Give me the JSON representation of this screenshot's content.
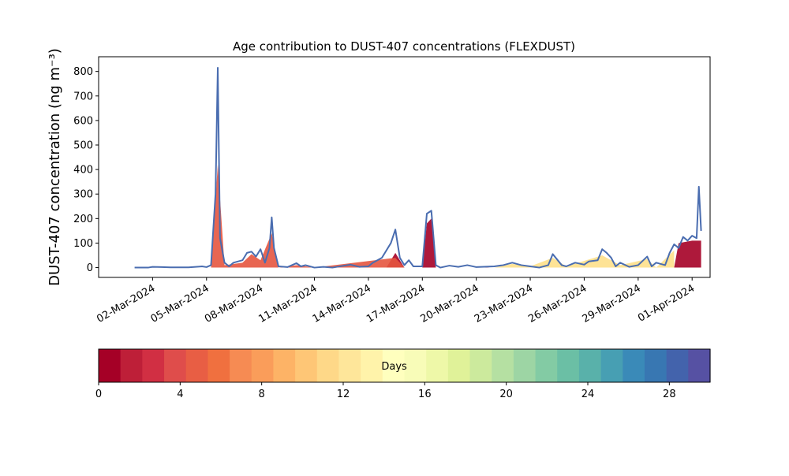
{
  "chart_data": {
    "type": "area",
    "title": "Age contribution to DUST-407 concentrations (FLEXDUST)",
    "ylabel": "DUST-407 concentration (ng m⁻³)",
    "xlabel": "",
    "x_range": [
      "2024-02-28",
      "2024-04-02"
    ],
    "ylim": [
      -40,
      860
    ],
    "yticks": [
      0,
      100,
      200,
      300,
      400,
      500,
      600,
      700,
      800
    ],
    "xticks": [
      {
        "date": "2024-03-02",
        "label": "02-Mar-2024"
      },
      {
        "date": "2024-03-05",
        "label": "05-Mar-2024"
      },
      {
        "date": "2024-03-08",
        "label": "08-Mar-2024"
      },
      {
        "date": "2024-03-11",
        "label": "11-Mar-2024"
      },
      {
        "date": "2024-03-14",
        "label": "14-Mar-2024"
      },
      {
        "date": "2024-03-17",
        "label": "17-Mar-2024"
      },
      {
        "date": "2024-03-20",
        "label": "20-Mar-2024"
      },
      {
        "date": "2024-03-23",
        "label": "23-Mar-2024"
      },
      {
        "date": "2024-03-26",
        "label": "26-Mar-2024"
      },
      {
        "date": "2024-03-29",
        "label": "29-Mar-2024"
      },
      {
        "date": "2024-04-01",
        "label": "01-Apr-2024"
      }
    ],
    "grid": false,
    "total_line_color": "#4a6db0",
    "series_total": [
      [
        "2024-03-01T00:00",
        0
      ],
      [
        "2024-03-01T18:00",
        0
      ],
      [
        "2024-03-02T00:00",
        3
      ],
      [
        "2024-03-02T12:00",
        2
      ],
      [
        "2024-03-03T00:00",
        1
      ],
      [
        "2024-03-04T00:00",
        1
      ],
      [
        "2024-03-04T18:00",
        5
      ],
      [
        "2024-03-05T00:00",
        2
      ],
      [
        "2024-03-05T06:00",
        10
      ],
      [
        "2024-03-05T12:00",
        300
      ],
      [
        "2024-03-05T15:00",
        815
      ],
      [
        "2024-03-05T18:00",
        120
      ],
      [
        "2024-03-06T00:00",
        20
      ],
      [
        "2024-03-06T06:00",
        5
      ],
      [
        "2024-03-06T12:00",
        20
      ],
      [
        "2024-03-07T00:00",
        30
      ],
      [
        "2024-03-07T06:00",
        60
      ],
      [
        "2024-03-07T12:00",
        65
      ],
      [
        "2024-03-07T18:00",
        45
      ],
      [
        "2024-03-08T00:00",
        75
      ],
      [
        "2024-03-08T06:00",
        20
      ],
      [
        "2024-03-08T12:00",
        80
      ],
      [
        "2024-03-08T15:00",
        205
      ],
      [
        "2024-03-08T18:00",
        80
      ],
      [
        "2024-03-09T00:00",
        5
      ],
      [
        "2024-03-09T12:00",
        2
      ],
      [
        "2024-03-10T00:00",
        18
      ],
      [
        "2024-03-10T06:00",
        5
      ],
      [
        "2024-03-10T12:00",
        10
      ],
      [
        "2024-03-11T00:00",
        0
      ],
      [
        "2024-03-11T12:00",
        3
      ],
      [
        "2024-03-12T00:00",
        0
      ],
      [
        "2024-03-13T00:00",
        12
      ],
      [
        "2024-03-13T12:00",
        3
      ],
      [
        "2024-03-14T00:00",
        5
      ],
      [
        "2024-03-14T06:00",
        20
      ],
      [
        "2024-03-14T18:00",
        40
      ],
      [
        "2024-03-15T06:00",
        100
      ],
      [
        "2024-03-15T12:00",
        155
      ],
      [
        "2024-03-15T18:00",
        40
      ],
      [
        "2024-03-16T00:00",
        10
      ],
      [
        "2024-03-16T06:00",
        30
      ],
      [
        "2024-03-16T12:00",
        5
      ],
      [
        "2024-03-17T00:00",
        5
      ],
      [
        "2024-03-17T06:00",
        220
      ],
      [
        "2024-03-17T12:00",
        232
      ],
      [
        "2024-03-17T18:00",
        10
      ],
      [
        "2024-03-18T00:00",
        0
      ],
      [
        "2024-03-18T12:00",
        8
      ],
      [
        "2024-03-19T00:00",
        3
      ],
      [
        "2024-03-19T12:00",
        10
      ],
      [
        "2024-03-20T00:00",
        2
      ],
      [
        "2024-03-21T00:00",
        5
      ],
      [
        "2024-03-21T12:00",
        10
      ],
      [
        "2024-03-22T00:00",
        20
      ],
      [
        "2024-03-22T12:00",
        10
      ],
      [
        "2024-03-23T00:00",
        5
      ],
      [
        "2024-03-23T12:00",
        0
      ],
      [
        "2024-03-24T00:00",
        10
      ],
      [
        "2024-03-24T06:00",
        55
      ],
      [
        "2024-03-24T18:00",
        10
      ],
      [
        "2024-03-25T00:00",
        5
      ],
      [
        "2024-03-25T12:00",
        20
      ],
      [
        "2024-03-26T00:00",
        12
      ],
      [
        "2024-03-26T06:00",
        25
      ],
      [
        "2024-03-26T18:00",
        30
      ],
      [
        "2024-03-27T00:00",
        75
      ],
      [
        "2024-03-27T06:00",
        60
      ],
      [
        "2024-03-27T12:00",
        40
      ],
      [
        "2024-03-27T18:00",
        5
      ],
      [
        "2024-03-28T00:00",
        20
      ],
      [
        "2024-03-28T12:00",
        3
      ],
      [
        "2024-03-29T00:00",
        10
      ],
      [
        "2024-03-29T12:00",
        45
      ],
      [
        "2024-03-29T18:00",
        5
      ],
      [
        "2024-03-30T00:00",
        20
      ],
      [
        "2024-03-30T12:00",
        10
      ],
      [
        "2024-03-30T18:00",
        60
      ],
      [
        "2024-03-31T00:00",
        95
      ],
      [
        "2024-03-31T06:00",
        80
      ],
      [
        "2024-03-31T12:00",
        125
      ],
      [
        "2024-03-31T18:00",
        110
      ],
      [
        "2024-04-01T00:00",
        130
      ],
      [
        "2024-04-01T06:00",
        120
      ],
      [
        "2024-04-01T09:00",
        330
      ],
      [
        "2024-04-01T12:00",
        150
      ]
    ],
    "age_layers": [
      {
        "age_days": [
          0,
          1
        ],
        "color": "#a50026",
        "points": [
          [
            "2024-03-15T00:00",
            0
          ],
          [
            "2024-03-15T12:00",
            60
          ],
          [
            "2024-03-16T00:00",
            0
          ],
          [
            "2024-03-17T00:00",
            0
          ],
          [
            "2024-03-17T06:00",
            180
          ],
          [
            "2024-03-17T12:00",
            200
          ],
          [
            "2024-03-17T18:00",
            0
          ],
          [
            "2024-03-20T00:00",
            0
          ],
          [
            "2024-03-20T06:00",
            5
          ],
          [
            "2024-03-20T18:00",
            0
          ],
          [
            "2024-03-30T18:00",
            0
          ],
          [
            "2024-03-31T00:00",
            0
          ],
          [
            "2024-03-31T06:00",
            100
          ],
          [
            "2024-04-01T00:00",
            110
          ],
          [
            "2024-04-01T12:00",
            110
          ]
        ]
      },
      {
        "age_days": [
          3,
          7
        ],
        "color": "#e6553f",
        "points": [
          [
            "2024-03-05T06:00",
            0
          ],
          [
            "2024-03-05T15:00",
            420
          ],
          [
            "2024-03-06T00:00",
            10
          ],
          [
            "2024-03-07T00:00",
            20
          ],
          [
            "2024-03-07T12:00",
            55
          ],
          [
            "2024-03-08T00:00",
            30
          ],
          [
            "2024-03-08T15:00",
            140
          ],
          [
            "2024-03-09T00:00",
            0
          ],
          [
            "2024-03-10T00:00",
            10
          ],
          [
            "2024-03-11T00:00",
            0
          ],
          [
            "2024-03-15T12:00",
            40
          ],
          [
            "2024-03-16T00:00",
            0
          ]
        ]
      },
      {
        "age_days": [
          10,
          15
        ],
        "color": "#fee08b",
        "points": [
          [
            "2024-03-21T00:00",
            0
          ],
          [
            "2024-03-22T00:00",
            15
          ],
          [
            "2024-03-23T00:00",
            5
          ],
          [
            "2024-03-24T06:00",
            40
          ],
          [
            "2024-03-25T00:00",
            5
          ],
          [
            "2024-03-27T00:00",
            50
          ],
          [
            "2024-03-28T00:00",
            10
          ],
          [
            "2024-03-29T12:00",
            35
          ],
          [
            "2024-03-30T00:00",
            0
          ],
          [
            "2024-03-31T00:00",
            70
          ]
        ]
      }
    ],
    "colorbar": {
      "label": "Days",
      "range": [
        0,
        30
      ],
      "ticks": [
        0,
        4,
        8,
        12,
        16,
        20,
        24,
        28
      ],
      "colors": [
        "#a50026",
        "#be1f38",
        "#d12f43",
        "#df4d4b",
        "#e85e44",
        "#f0703f",
        "#f68b53",
        "#fa9d5a",
        "#fdb366",
        "#fec676",
        "#fed888",
        "#fee69a",
        "#fff3aa",
        "#ffffbe",
        "#f8fcb8",
        "#eef8a8",
        "#e0f299",
        "#ccea9d",
        "#b5e0a2",
        "#9dd5a4",
        "#83cba4",
        "#6bbfa5",
        "#59b1aa",
        "#479fb3",
        "#3a8ab8",
        "#3877b2",
        "#4363ac",
        "#5651a3"
      ]
    }
  }
}
